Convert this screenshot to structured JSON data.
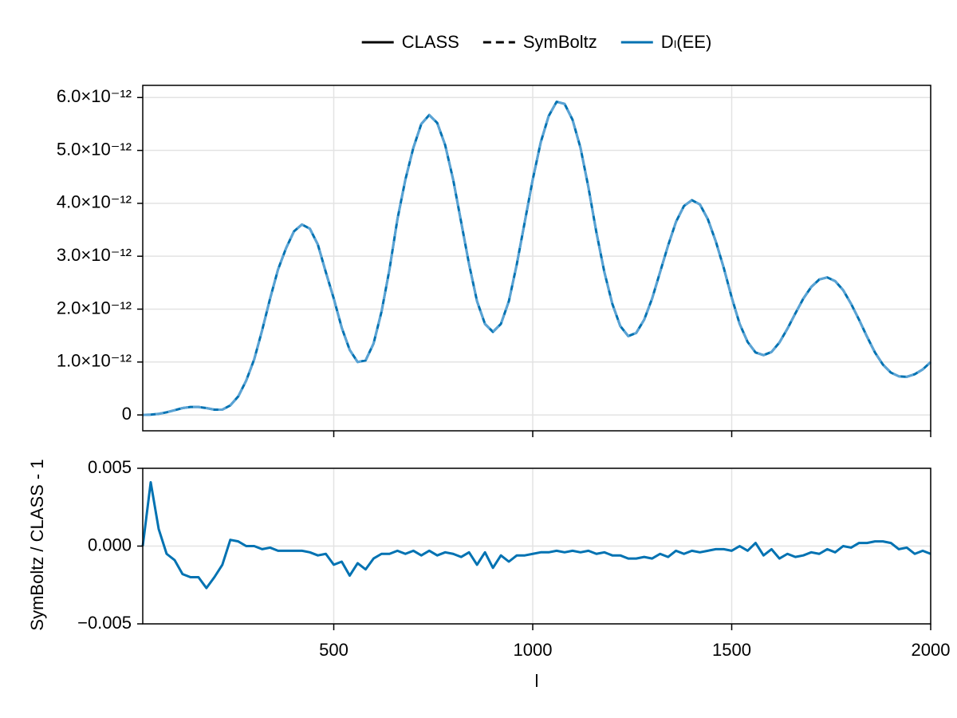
{
  "chart_data": [
    {
      "type": "line",
      "x": [
        20,
        40,
        60,
        80,
        100,
        120,
        140,
        160,
        180,
        200,
        220,
        240,
        260,
        280,
        300,
        320,
        340,
        360,
        380,
        400,
        420,
        440,
        460,
        480,
        500,
        520,
        540,
        560,
        580,
        600,
        620,
        640,
        660,
        680,
        700,
        720,
        740,
        760,
        780,
        800,
        820,
        840,
        860,
        880,
        900,
        920,
        940,
        960,
        980,
        1000,
        1020,
        1040,
        1060,
        1080,
        1100,
        1120,
        1140,
        1160,
        1180,
        1200,
        1220,
        1240,
        1260,
        1280,
        1300,
        1320,
        1340,
        1360,
        1380,
        1400,
        1420,
        1440,
        1460,
        1480,
        1500,
        1520,
        1540,
        1560,
        1580,
        1600,
        1620,
        1640,
        1660,
        1680,
        1700,
        1720,
        1740,
        1760,
        1780,
        1800,
        1820,
        1840,
        1860,
        1880,
        1900,
        1920,
        1940,
        1960,
        1980,
        2000
      ],
      "series": [
        {
          "name": "CLASS",
          "color": "#0072b2",
          "dash": "solid",
          "values": [
            0,
            5e-15,
            2e-14,
            5e-14,
            9e-14,
            1.3e-13,
            1.5e-13,
            1.5e-13,
            1.3e-13,
            1e-13,
            1e-13,
            1.8e-13,
            3.5e-13,
            6.5e-13,
            1.05e-12,
            1.6e-12,
            2.2e-12,
            2.75e-12,
            3.15e-12,
            3.47e-12,
            3.6e-12,
            3.52e-12,
            3.22e-12,
            2.7e-12,
            2.2e-12,
            1.65e-12,
            1.23e-12,
            1e-12,
            1.03e-12,
            1.35e-12,
            1.95e-12,
            2.75e-12,
            3.7e-12,
            4.45e-12,
            5.05e-12,
            5.5e-12,
            5.67e-12,
            5.52e-12,
            5.1e-12,
            4.45e-12,
            3.65e-12,
            2.85e-12,
            2.15e-12,
            1.72e-12,
            1.57e-12,
            1.72e-12,
            2.15e-12,
            2.85e-12,
            3.65e-12,
            4.45e-12,
            5.15e-12,
            5.65e-12,
            5.92e-12,
            5.88e-12,
            5.58e-12,
            5.05e-12,
            4.3e-12,
            3.45e-12,
            2.7e-12,
            2.1e-12,
            1.68e-12,
            1.49e-12,
            1.55e-12,
            1.8e-12,
            2.2e-12,
            2.7e-12,
            3.2e-12,
            3.65e-12,
            3.95e-12,
            4.06e-12,
            3.98e-12,
            3.7e-12,
            3.28e-12,
            2.78e-12,
            2.22e-12,
            1.72e-12,
            1.38e-12,
            1.18e-12,
            1.13e-12,
            1.19e-12,
            1.37e-12,
            1.63e-12,
            1.92e-12,
            2.2e-12,
            2.42e-12,
            2.56e-12,
            2.6e-12,
            2.53e-12,
            2.36e-12,
            2.1e-12,
            1.8e-12,
            1.48e-12,
            1.18e-12,
            9.5e-13,
            8e-13,
            7.3e-13,
            7.2e-13,
            7.7e-13,
            8.6e-13,
            1e-12
          ]
        },
        {
          "name": "SymBoltz",
          "color": "#5ba3d4",
          "dash": "dashed",
          "values": [
            0,
            5e-15,
            2e-14,
            5e-14,
            9e-14,
            1.3e-13,
            1.5e-13,
            1.5e-13,
            1.3e-13,
            1e-13,
            1e-13,
            1.8e-13,
            3.5e-13,
            6.5e-13,
            1.05e-12,
            1.6e-12,
            2.2e-12,
            2.75e-12,
            3.15e-12,
            3.47e-12,
            3.6e-12,
            3.52e-12,
            3.22e-12,
            2.7e-12,
            2.2e-12,
            1.65e-12,
            1.23e-12,
            1e-12,
            1.03e-12,
            1.35e-12,
            1.95e-12,
            2.75e-12,
            3.7e-12,
            4.45e-12,
            5.05e-12,
            5.5e-12,
            5.67e-12,
            5.52e-12,
            5.1e-12,
            4.45e-12,
            3.65e-12,
            2.85e-12,
            2.15e-12,
            1.72e-12,
            1.57e-12,
            1.72e-12,
            2.15e-12,
            2.85e-12,
            3.65e-12,
            4.45e-12,
            5.15e-12,
            5.65e-12,
            5.92e-12,
            5.88e-12,
            5.58e-12,
            5.05e-12,
            4.3e-12,
            3.45e-12,
            2.7e-12,
            2.1e-12,
            1.68e-12,
            1.49e-12,
            1.55e-12,
            1.8e-12,
            2.2e-12,
            2.7e-12,
            3.2e-12,
            3.65e-12,
            3.95e-12,
            4.06e-12,
            3.98e-12,
            3.7e-12,
            3.28e-12,
            2.78e-12,
            2.22e-12,
            1.72e-12,
            1.38e-12,
            1.18e-12,
            1.13e-12,
            1.19e-12,
            1.37e-12,
            1.63e-12,
            1.92e-12,
            2.2e-12,
            2.42e-12,
            2.56e-12,
            2.6e-12,
            2.53e-12,
            2.36e-12,
            2.1e-12,
            1.8e-12,
            1.48e-12,
            1.18e-12,
            9.5e-13,
            8e-13,
            7.3e-13,
            7.2e-13,
            7.7e-13,
            8.6e-13,
            1e-12
          ]
        }
      ],
      "legend_color": "#000000",
      "legend_extra": [
        {
          "name": "Dₗ(EE)",
          "color": "#0072b2"
        }
      ],
      "legend": "top",
      "xlim": [
        20,
        2000
      ],
      "ylim": [
        -3e-13,
        6.23e-12
      ],
      "yticks": [
        0,
        {
          "value": 1e-12,
          "label": "1.0×10⁻¹²"
        },
        {
          "value": 2e-12,
          "label": "2.0×10⁻¹²"
        },
        {
          "value": 3e-12,
          "label": "3.0×10⁻¹²"
        },
        {
          "value": 4e-12,
          "label": "4.0×10⁻¹²"
        },
        {
          "value": 5e-12,
          "label": "5.0×10⁻¹²"
        },
        {
          "value": 6e-12,
          "label": "6.0×10⁻¹²"
        }
      ],
      "grid": true
    },
    {
      "type": "line",
      "x": [
        20,
        40,
        60,
        80,
        100,
        120,
        140,
        160,
        180,
        200,
        220,
        240,
        260,
        280,
        300,
        320,
        340,
        360,
        380,
        400,
        420,
        440,
        460,
        480,
        500,
        520,
        540,
        560,
        580,
        600,
        620,
        640,
        660,
        680,
        700,
        720,
        740,
        760,
        780,
        800,
        820,
        840,
        860,
        880,
        900,
        920,
        940,
        960,
        980,
        1000,
        1020,
        1040,
        1060,
        1080,
        1100,
        1120,
        1140,
        1160,
        1180,
        1200,
        1220,
        1240,
        1260,
        1280,
        1300,
        1320,
        1340,
        1360,
        1380,
        1400,
        1420,
        1440,
        1460,
        1480,
        1500,
        1520,
        1540,
        1560,
        1580,
        1600,
        1620,
        1640,
        1660,
        1680,
        1700,
        1720,
        1740,
        1760,
        1780,
        1800,
        1820,
        1840,
        1860,
        1880,
        1900,
        1920,
        1940,
        1960,
        1980,
        2000
      ],
      "series": [
        {
          "color": "#0072b2",
          "values": [
            0,
            0.0041,
            0.0011,
            -0.0005,
            -0.0009,
            -0.0018,
            -0.002,
            -0.002,
            -0.0027,
            -0.002,
            -0.0012,
            0.0004,
            0.0003,
            0,
            0,
            -0.0002,
            -0.0001,
            -0.0003,
            -0.0003,
            -0.0003,
            -0.0003,
            -0.0004,
            -0.0006,
            -0.0005,
            -0.0012,
            -0.001,
            -0.0019,
            -0.0011,
            -0.0015,
            -0.0008,
            -0.0005,
            -0.0005,
            -0.0003,
            -0.0005,
            -0.0003,
            -0.0006,
            -0.0003,
            -0.0006,
            -0.0004,
            -0.0005,
            -0.0007,
            -0.0004,
            -0.0012,
            -0.0004,
            -0.0014,
            -0.0006,
            -0.001,
            -0.0006,
            -0.0006,
            -0.0005,
            -0.0004,
            -0.0004,
            -0.0003,
            -0.0004,
            -0.0003,
            -0.0004,
            -0.0003,
            -0.0005,
            -0.0004,
            -0.0006,
            -0.0006,
            -0.0008,
            -0.0008,
            -0.0007,
            -0.0008,
            -0.0005,
            -0.0007,
            -0.0003,
            -0.0005,
            -0.0003,
            -0.0004,
            -0.0003,
            -0.0002,
            -0.0002,
            -0.0003,
            0,
            -0.0003,
            0.0002,
            -0.0006,
            -0.0002,
            -0.0008,
            -0.0005,
            -0.0007,
            -0.0006,
            -0.0004,
            -0.0005,
            -0.0002,
            -0.0004,
            0,
            -0.0001,
            0.0002,
            0.0002,
            0.0003,
            0.0003,
            0.0002,
            -0.0002,
            -0.0001,
            -0.0005,
            -0.0003,
            -0.0005
          ]
        }
      ],
      "xlabel": "l",
      "ylabel": "SymBoltz / CLASS - 1",
      "xlim": [
        20,
        2000
      ],
      "xticks": [
        500,
        1000,
        1500,
        2000
      ],
      "ylim": [
        -0.005,
        0.005
      ],
      "yticks": [
        {
          "value": -0.005,
          "label": "−0.005"
        },
        {
          "value": 0,
          "label": "0.000"
        },
        {
          "value": 0.005,
          "label": "0.005"
        }
      ],
      "grid": true
    }
  ]
}
